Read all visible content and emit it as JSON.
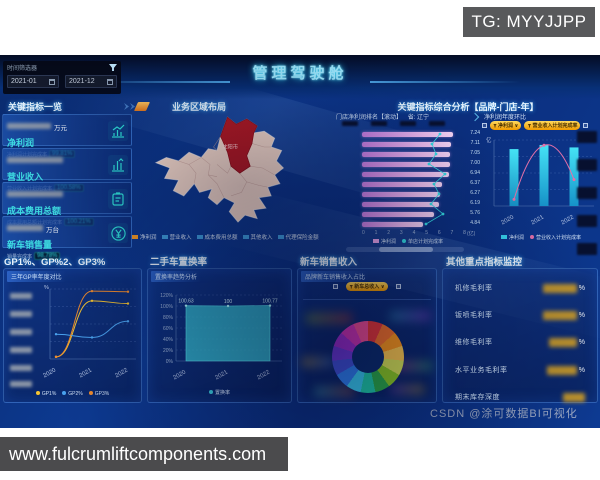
{
  "page": {
    "tg_label": "TG: MYYJJPP",
    "site_watermark": "www.fulcrumliftcomponents.com",
    "csdn_watermark": "CSDN @涂可数据BI可视化"
  },
  "header": {
    "title": "管理驾驶舱",
    "filter": {
      "label": "时间筛选器",
      "date_start": "2021-01",
      "date_end": "2021-12"
    }
  },
  "kpi": {
    "title": "关键指标一览",
    "items": [
      {
        "name": "净利润",
        "unit": "万元",
        "sub_label": "净利润计划完成率",
        "badge": "99.81%"
      },
      {
        "name": "营业收入",
        "unit": "",
        "sub_label": "营业收入计划完成率",
        "badge": "100.58%"
      },
      {
        "name": "成本费用总额",
        "unit": "",
        "sub_label": "成本费用总额计划完成率",
        "badge": "100.21%"
      },
      {
        "name": "新车销售量",
        "unit": "万台",
        "sub_label": "销量完成率",
        "badge": "98.78%"
      }
    ]
  },
  "map_panel": {
    "title": "业务区域布局",
    "region_label": "沈阳市",
    "legend": [
      {
        "label": "净利润",
        "color": "#f59a23"
      },
      {
        "label": "营业收入",
        "color": "#3f9fe0"
      },
      {
        "label": "成本费用总额",
        "color": "#3f9fe0"
      },
      {
        "label": "其他收入",
        "color": "#3f9fe0"
      },
      {
        "label": "代理保险金额",
        "color": "#3f9fe0"
      }
    ]
  },
  "analysis": {
    "title": "关键指标综合分析【品牌-门店-年】",
    "ranking": {
      "subtitle": "门店净利润排名【滚动】",
      "province": "省: 辽宁",
      "axis_unit": "(亿)",
      "legend": [
        "净利润",
        "单店计划完成率"
      ]
    },
    "yoy": {
      "subtitle": "净利润年度环比",
      "unit": "亿",
      "buttons": [
        "净利润 ∨",
        "营业收入计划完成率"
      ],
      "legend": [
        "净利润",
        "营业收入计划完成率"
      ]
    }
  },
  "bottom": {
    "gp": {
      "title": "GP1%、GP%2、GP3%",
      "subtitle": "三年GP率年度对比",
      "unit": "%"
    },
    "replacement": {
      "title": "二手车置换率",
      "subtitle": "置换率趋势分析",
      "legend": "置换率"
    },
    "newcar": {
      "title": "新车销售收入",
      "subtitle": "品牌新车销售收入占比",
      "button": "新车总收入 ∨"
    },
    "monitor": {
      "title": "其他重点指标监控",
      "metrics": [
        "机修毛利率",
        "钣喷毛利率",
        "维修毛利率",
        "水平业务毛利率",
        "期末库存深度"
      ],
      "unit": "%"
    }
  },
  "chart_data": [
    {
      "id": "store_ranking",
      "type": "bar-horizontal",
      "values": [
        7.24,
        7.11,
        7.05,
        7.0,
        6.94,
        6.37,
        6.27,
        6.19,
        5.76,
        4.84
      ],
      "xlim": [
        0,
        8
      ],
      "x_ticks": [
        0,
        1,
        2,
        3,
        4,
        5,
        6,
        7,
        8
      ],
      "unit": "亿",
      "line_series": {
        "name": "单店计划完成率",
        "pct": [
          78,
          70,
          74,
          67,
          83,
          72,
          77,
          69,
          81,
          64
        ]
      }
    },
    {
      "id": "net_profit_yoy",
      "type": "bar",
      "categories": [
        "2020",
        "2021",
        "2022"
      ],
      "values": [
        6.9,
        7.4,
        7.1
      ],
      "ylim": [
        0,
        8
      ],
      "line": {
        "name": "营业收入计划完成率",
        "pct": [
          10,
          92,
          40
        ]
      }
    },
    {
      "id": "gp_trend",
      "type": "line",
      "categories": [
        "2020",
        "2021",
        "2022"
      ],
      "ylim": [
        0,
        130
      ],
      "series": [
        {
          "name": "GP1%",
          "color": "#f7c531",
          "values": [
            4,
            108,
            103
          ]
        },
        {
          "name": "GP2%",
          "color": "#4aa3f0",
          "values": [
            46,
            40,
            70
          ]
        },
        {
          "name": "GP3%",
          "color": "#f08c2e",
          "values": [
            4,
            126,
            125
          ]
        }
      ]
    },
    {
      "id": "replacement_rate",
      "type": "area",
      "categories": [
        "2020",
        "2021",
        "2022"
      ],
      "values": [
        100.63,
        100,
        100.77
      ],
      "ylim": [
        0,
        120
      ],
      "y_ticks": [
        "120%",
        "100%",
        "80%",
        "60%",
        "40%",
        "20%",
        "0%"
      ],
      "color": "#39c5d8"
    },
    {
      "id": "newcar_share",
      "type": "pie",
      "colors": [
        "#e5383b",
        "#f3722c",
        "#f8961e",
        "#f9c74f",
        "#d4e157",
        "#8ac926",
        "#2ba84a",
        "#1fc8a9",
        "#38c8f0",
        "#2f7ff0",
        "#3f51d8",
        "#6a3ad8",
        "#9b2fd0",
        "#d036b8",
        "#f04e98"
      ]
    }
  ]
}
